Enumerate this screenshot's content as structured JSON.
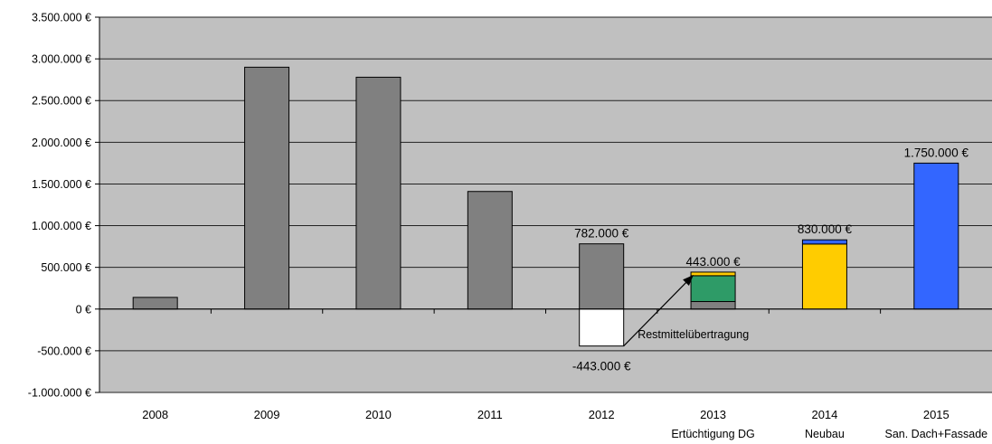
{
  "chart_data": {
    "type": "bar",
    "stacked": true,
    "categories": [
      "2008",
      "2009",
      "2010",
      "2011",
      "2012",
      "2013",
      "2014",
      "2015"
    ],
    "category_sublabels": [
      "",
      "",
      "",
      "",
      "",
      "Ertüchtigung DG",
      "Neubau",
      "San. Dach+Fassade"
    ],
    "series": [
      {
        "name": "",
        "color": "#808080",
        "values": [
          140000,
          2900000,
          2780000,
          1410000,
          782000,
          90000,
          0,
          0
        ]
      },
      {
        "name": "",
        "color": "#ffffff",
        "values": [
          0,
          0,
          0,
          0,
          -443000,
          0,
          0,
          0
        ]
      },
      {
        "name": "",
        "color": "#2e9b67",
        "values": [
          0,
          0,
          0,
          0,
          0,
          310000,
          0,
          0
        ]
      },
      {
        "name": "",
        "color": "#ffcc00",
        "values": [
          0,
          0,
          0,
          0,
          0,
          43000,
          780000,
          0
        ]
      },
      {
        "name": "",
        "color": "#3366ff",
        "values": [
          0,
          0,
          0,
          0,
          0,
          0,
          50000,
          1750000
        ]
      }
    ],
    "y_ticks": [
      "3.500.000 €",
      "3.000.000 €",
      "2.500.000 €",
      "2.000.000 €",
      "1.500.000 €",
      "1.000.000 €",
      "500.000 €",
      "0 €",
      "-500.000 €",
      "-1.000.000 €"
    ],
    "ylim": [
      -1000000,
      3500000
    ],
    "y_tick_step": 500000,
    "grid": true,
    "plot_background": "#c0c0c0",
    "data_labels": [
      {
        "category": "2012",
        "value": 782000,
        "text": "782.000 €",
        "position": "above"
      },
      {
        "category": "2012",
        "value": -443000,
        "text": "-443.000 €",
        "position": "below"
      },
      {
        "category": "2013",
        "value": 443000,
        "text": "443.000 €",
        "position": "above"
      },
      {
        "category": "2014",
        "value": 830000,
        "text": "830.000 €",
        "position": "above"
      },
      {
        "category": "2015",
        "value": 1750000,
        "text": "1.750.000 €",
        "position": "above"
      }
    ],
    "annotations": [
      {
        "text": "Restmittelübertragung",
        "from_category": "2012",
        "to_category": "2013",
        "arrow": true
      }
    ]
  }
}
